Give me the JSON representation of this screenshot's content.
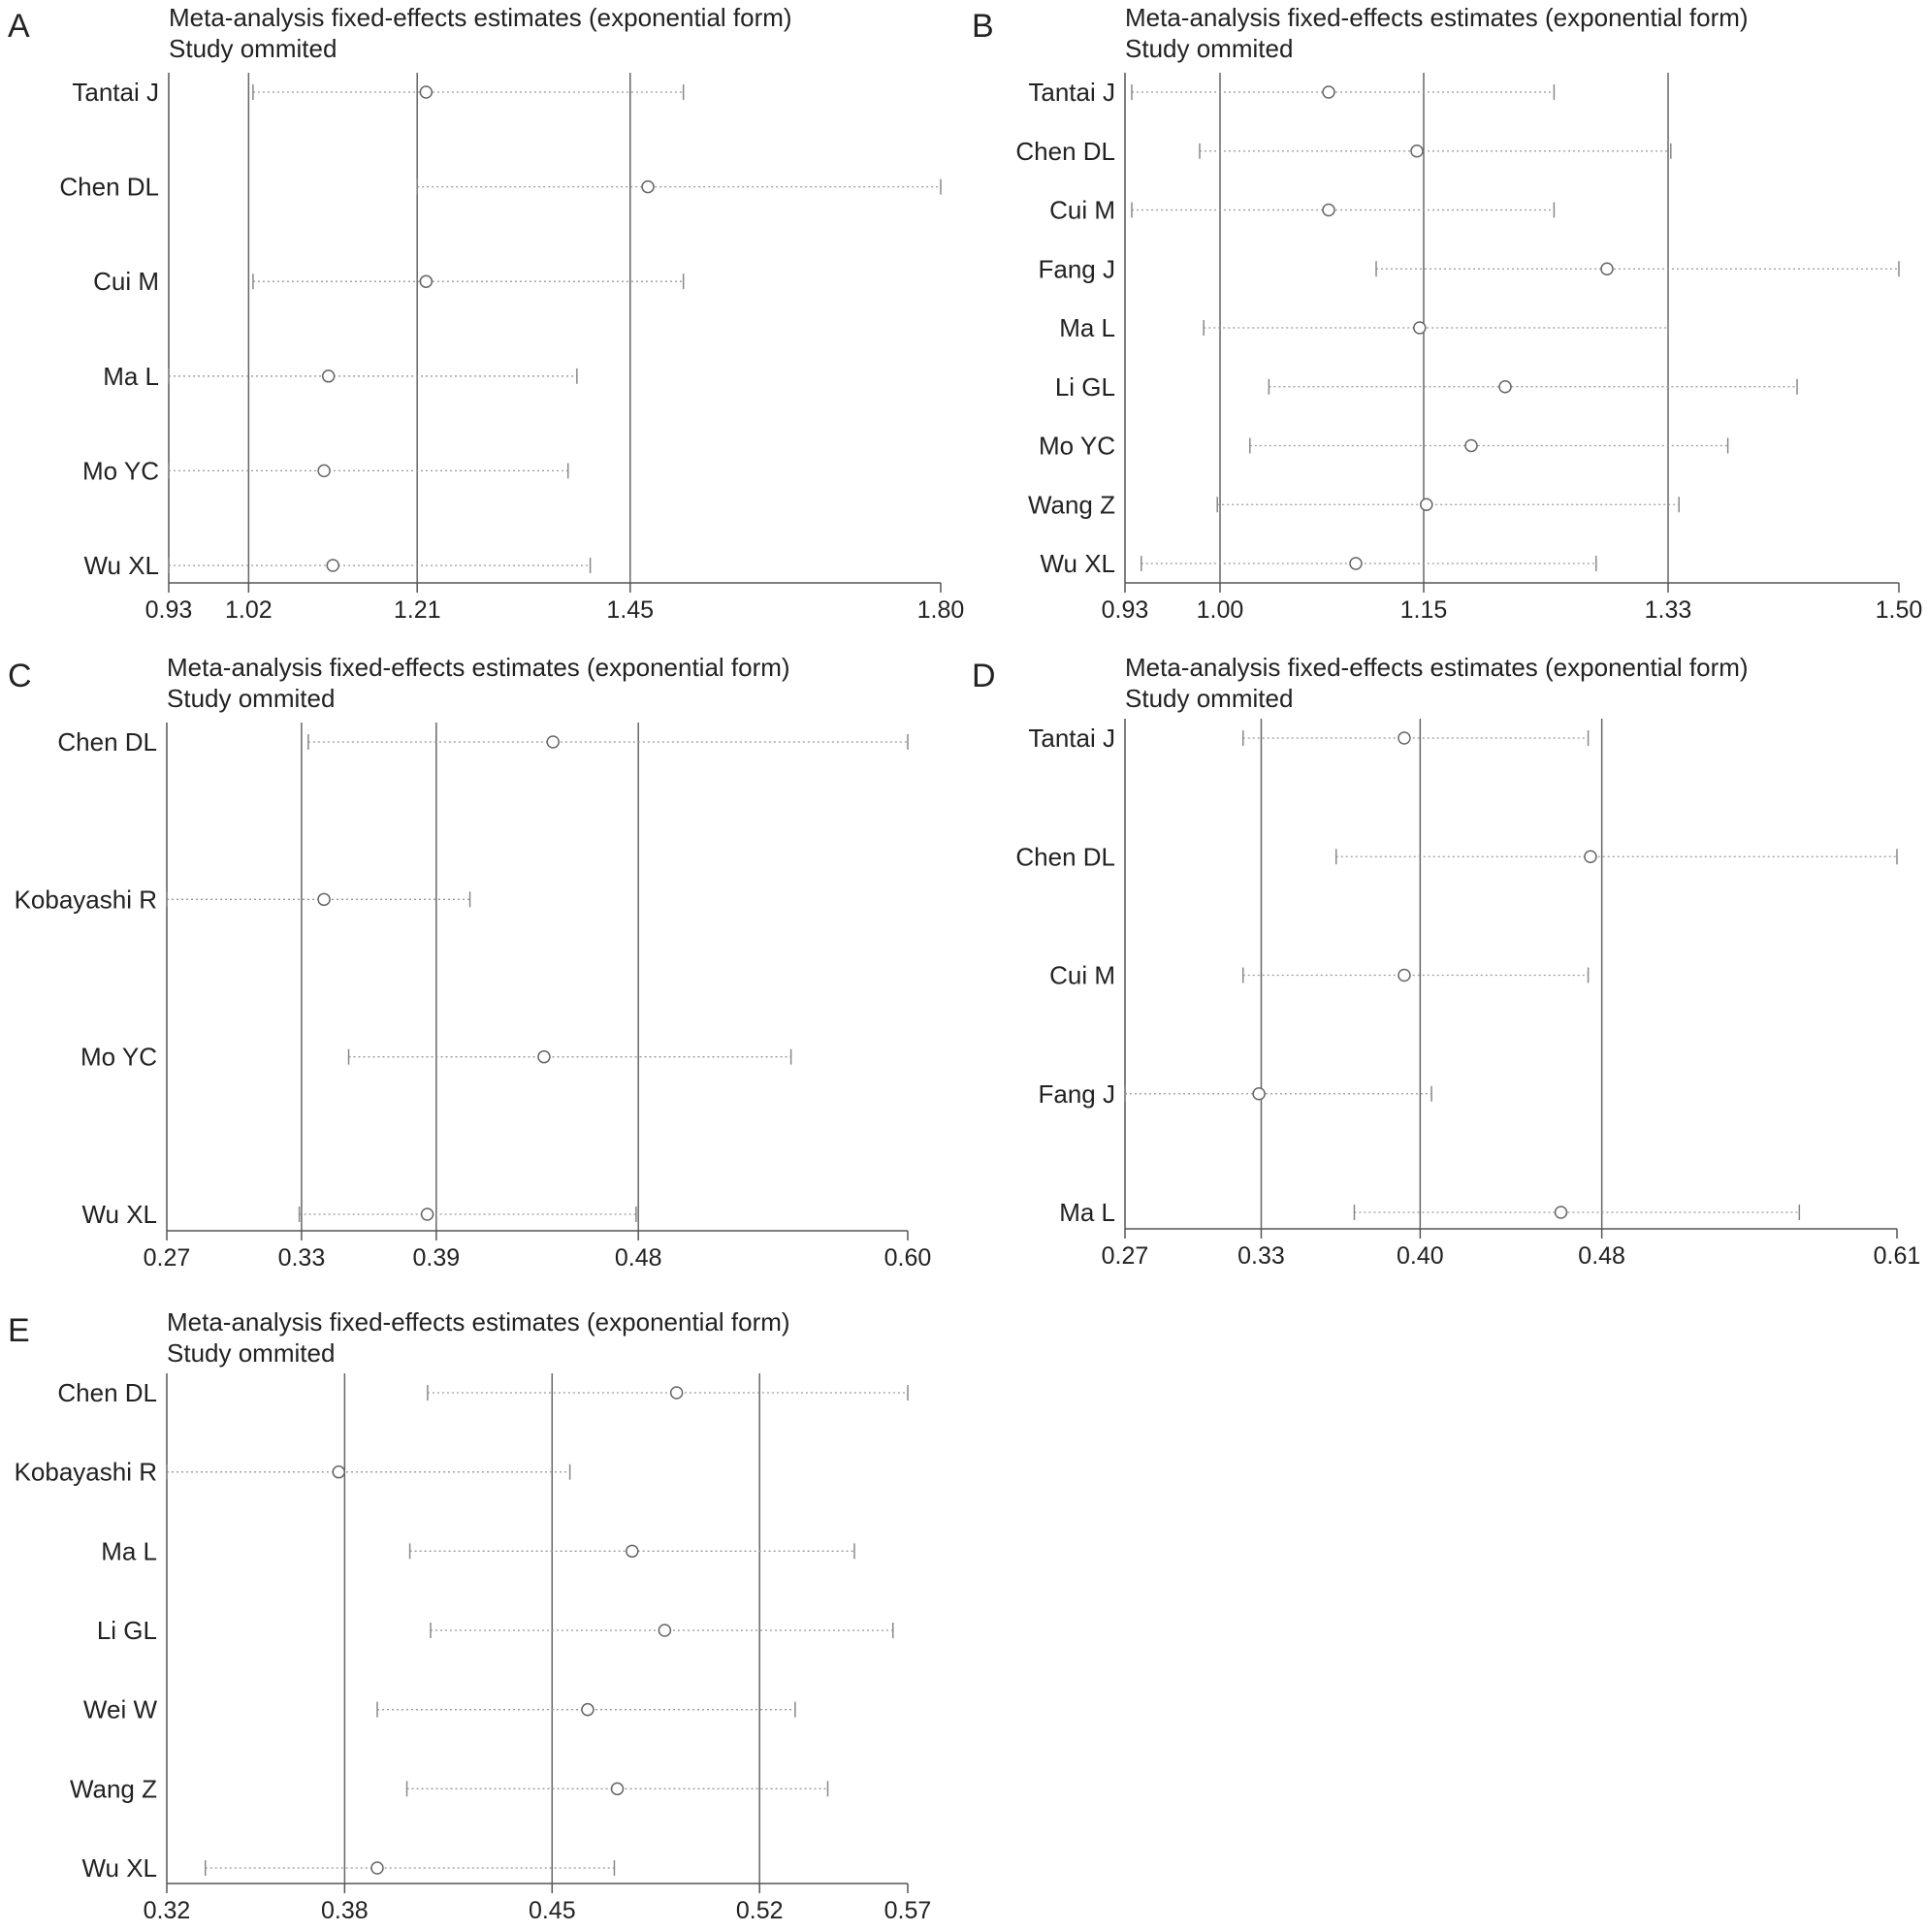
{
  "chart_data": [
    {
      "panel": "A",
      "type": "forest",
      "title": "Meta-analysis fixed-effects estimates (exponential form)",
      "subtitle": "Study ommited",
      "studies": [
        "Tantai J",
        "Chen DL",
        "Cui M",
        "Ma L",
        "Mo YC",
        "Wu XL"
      ],
      "estimate": [
        1.22,
        1.47,
        1.22,
        1.11,
        1.105,
        1.115
      ],
      "lower": [
        1.025,
        1.21,
        1.025,
        0.93,
        0.93,
        0.93
      ],
      "upper": [
        1.51,
        1.8,
        1.51,
        1.39,
        1.38,
        1.405
      ],
      "ticks": [
        "0.93",
        "1.02",
        "1.21",
        "1.45",
        "1.80"
      ],
      "reference_lines": [
        1.02,
        1.21,
        1.45
      ],
      "xlim": [
        0.93,
        1.8
      ]
    },
    {
      "panel": "B",
      "type": "forest",
      "title": "Meta-analysis fixed-effects estimates (exponential form)",
      "subtitle": "Study ommited",
      "studies": [
        "Tantai J",
        "Chen DL",
        "Cui M",
        "Fang J",
        "Ma L",
        "Li GL",
        "Mo YC",
        "Wang Z",
        "Wu XL"
      ],
      "estimate": [
        1.08,
        1.145,
        1.08,
        1.285,
        1.147,
        1.21,
        1.185,
        1.152,
        1.1
      ],
      "lower": [
        0.935,
        0.985,
        0.935,
        1.115,
        0.988,
        1.036,
        1.022,
        0.998,
        0.942
      ],
      "upper": [
        1.246,
        1.332,
        1.246,
        1.5,
        1.33,
        1.425,
        1.374,
        1.338,
        1.277
      ],
      "ticks": [
        "0.93",
        "1.00",
        "1.15",
        "1.33",
        "1.50"
      ],
      "reference_lines": [
        1.0,
        1.15,
        1.33
      ],
      "xlim": [
        0.93,
        1.5
      ]
    },
    {
      "panel": "C",
      "type": "forest",
      "title": "Meta-analysis fixed-effects estimates (exponential form)",
      "subtitle": "Study ommited",
      "studies": [
        "Chen DL",
        "Kobayashi R",
        "Mo YC",
        "Wu XL"
      ],
      "estimate": [
        0.442,
        0.34,
        0.438,
        0.386
      ],
      "lower": [
        0.333,
        0.27,
        0.351,
        0.329
      ],
      "upper": [
        0.6,
        0.405,
        0.548,
        0.479
      ],
      "ticks": [
        "0.27",
        "0.33",
        "0.39",
        "0.48",
        "0.60"
      ],
      "reference_lines": [
        0.33,
        0.39,
        0.48
      ],
      "xlim": [
        0.27,
        0.6
      ]
    },
    {
      "panel": "D",
      "type": "forest",
      "title": "Meta-analysis fixed-effects estimates (exponential form)",
      "subtitle": "Study ommited",
      "studies": [
        "Tantai J",
        "Chen DL",
        "Cui M",
        "Fang J",
        "Ma L"
      ],
      "estimate": [
        0.393,
        0.475,
        0.393,
        0.329,
        0.462
      ],
      "lower": [
        0.322,
        0.363,
        0.322,
        0.27,
        0.371
      ],
      "upper": [
        0.474,
        0.61,
        0.474,
        0.405,
        0.567
      ],
      "ticks": [
        "0.27",
        "0.33",
        "0.40",
        "0.48",
        "0.61"
      ],
      "reference_lines": [
        0.33,
        0.4,
        0.48
      ],
      "xlim": [
        0.27,
        0.61
      ]
    },
    {
      "panel": "E",
      "type": "forest",
      "title": "Meta-analysis fixed-effects estimates (exponential form)",
      "subtitle": "Study ommited",
      "studies": [
        "Chen DL",
        "Kobayashi R",
        "Ma L",
        "Li GL",
        "Wei W",
        "Wang Z",
        "Wu XL"
      ],
      "estimate": [
        0.492,
        0.378,
        0.477,
        0.488,
        0.462,
        0.472,
        0.391
      ],
      "lower": [
        0.408,
        0.32,
        0.402,
        0.409,
        0.391,
        0.401,
        0.333
      ],
      "upper": [
        0.57,
        0.456,
        0.552,
        0.565,
        0.532,
        0.543,
        0.471
      ],
      "ticks": [
        "0.32",
        "0.38",
        "0.45",
        "0.52",
        "0.57"
      ],
      "reference_lines": [
        0.38,
        0.45,
        0.52
      ],
      "xlim": [
        0.32,
        0.57
      ]
    }
  ]
}
